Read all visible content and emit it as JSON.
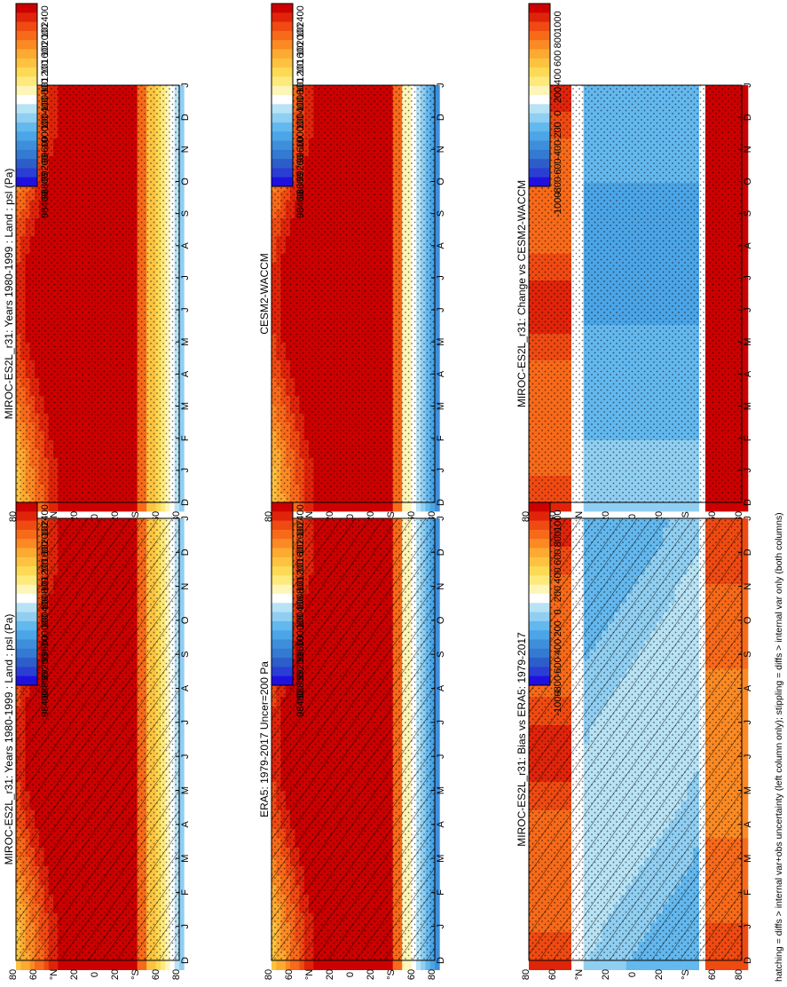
{
  "figure": {
    "footnote": "hatching = diffs > internal var+obs uncertainty (left column only); stippling = diffs > internal var only (both columns)"
  },
  "colors": {
    "mean_scale": [
      "#cc0000",
      "#e0240a",
      "#ef4a12",
      "#f76a1a",
      "#fb8a24",
      "#fcaa32",
      "#fdc340",
      "#fdda55",
      "#fde97c",
      "#fef6b8",
      "#ffffff",
      "#b8e3f5",
      "#90cff2",
      "#63b8ee",
      "#4ba5e6",
      "#3e8edc",
      "#3479d2",
      "#2d5dc8",
      "#2a3ed4",
      "#1f10e0"
    ],
    "diff_scale": [
      "#cc0000",
      "#e0240a",
      "#ef4a12",
      "#f76a1a",
      "#fb8a24",
      "#fcaa32",
      "#fdc340",
      "#fdda55",
      "#fde97c",
      "#fef6b8",
      "#ffffff",
      "#b8e3f5",
      "#90cff2",
      "#63b8ee",
      "#4ba5e6",
      "#3e8edc",
      "#3479d2",
      "#2d5dc8",
      "#2a3ed4",
      "#1f10e0"
    ]
  },
  "chart_data": [
    {
      "id": "p1",
      "type": "heatmap",
      "title": "MIROC-ES2L_r31: Years 1980-1999 : Land : psl (Pa)",
      "x": [
        "D",
        "J",
        "F",
        "M",
        "A",
        "M",
        "J",
        "J",
        "A",
        "S",
        "O",
        "N",
        "D",
        "J"
      ],
      "y": [
        "80",
        "60",
        "°N",
        "20",
        "0",
        "20",
        "°S",
        "60",
        "80"
      ],
      "colorbar": [
        "102400",
        "102000",
        "101600",
        "101200",
        "100800",
        "100400",
        "100000",
        "99600",
        "99200",
        "98800",
        "98400"
      ],
      "scale": "mean",
      "hatching": true,
      "stippling": true
    },
    {
      "id": "p2",
      "type": "heatmap",
      "title": "MIROC-ES2L_r31: Years 1980-1999 : Land : psl (Pa)",
      "x": [
        "D",
        "J",
        "F",
        "M",
        "A",
        "M",
        "J",
        "J",
        "A",
        "S",
        "O",
        "N",
        "D",
        "J"
      ],
      "y": [
        "80",
        "60",
        "°N",
        "20",
        "0",
        "20",
        "°S",
        "60",
        "80"
      ],
      "colorbar": [
        "102400",
        "102000",
        "101600",
        "101200",
        "100800",
        "100400",
        "100000",
        "99600",
        "99200",
        "98800",
        "98400"
      ],
      "scale": "mean",
      "hatching": false,
      "stippling": true
    },
    {
      "id": "p3",
      "type": "heatmap",
      "title": "ERA5: 1979-2017 Uncer=200 Pa",
      "x": [
        "D",
        "J",
        "F",
        "M",
        "A",
        "M",
        "J",
        "J",
        "A",
        "S",
        "O",
        "N",
        "D",
        "J"
      ],
      "y": [
        "80",
        "60",
        "°N",
        "20",
        "0",
        "20",
        "°S",
        "60",
        "80"
      ],
      "colorbar": [
        "102400",
        "102000",
        "101600",
        "101200",
        "100800",
        "100400",
        "100000",
        "99600",
        "99200",
        "98800",
        "98400"
      ],
      "scale": "mean",
      "hatching": true,
      "stippling": true
    },
    {
      "id": "p4",
      "type": "heatmap",
      "title": "CESM2-WACCM",
      "x": [
        "D",
        "J",
        "F",
        "M",
        "A",
        "M",
        "J",
        "J",
        "A",
        "S",
        "O",
        "N",
        "D",
        "J"
      ],
      "y": [
        "80",
        "60",
        "°N",
        "20",
        "0",
        "20",
        "°S",
        "60",
        "80"
      ],
      "colorbar": [
        "102400",
        "102000",
        "101600",
        "101200",
        "100800",
        "100400",
        "100000",
        "99600",
        "99200",
        "98800",
        "98400"
      ],
      "scale": "mean",
      "hatching": false,
      "stippling": true
    },
    {
      "id": "p5",
      "type": "heatmap",
      "title": "MIROC-ES2L_r31: Bias vs ERA5: 1979-2017",
      "x": [
        "D",
        "J",
        "F",
        "M",
        "A",
        "M",
        "J",
        "J",
        "A",
        "S",
        "O",
        "N",
        "D",
        "J"
      ],
      "y": [
        "80",
        "60",
        "°N",
        "20",
        "0",
        "20",
        "°S",
        "60",
        "80"
      ],
      "colorbar": [
        "1000",
        "800",
        "600",
        "400",
        "200",
        "0",
        "-200",
        "-400",
        "-600",
        "-800",
        "-1000"
      ],
      "scale": "diff",
      "hatching": true,
      "stippling": true
    },
    {
      "id": "p6",
      "type": "heatmap",
      "title": "MIROC-ES2L_r31: Change vs CESM2-WACCM",
      "x": [
        "D",
        "J",
        "F",
        "M",
        "A",
        "M",
        "J",
        "J",
        "A",
        "S",
        "O",
        "N",
        "D",
        "J"
      ],
      "y": [
        "80",
        "60",
        "°N",
        "20",
        "0",
        "20",
        "°S",
        "60",
        "80"
      ],
      "colorbar": [
        "1000",
        "800",
        "600",
        "400",
        "200",
        "0",
        "-200",
        "-400",
        "-600",
        "-800",
        "-1000"
      ],
      "scale": "diff",
      "hatching": false,
      "stippling": true
    }
  ]
}
